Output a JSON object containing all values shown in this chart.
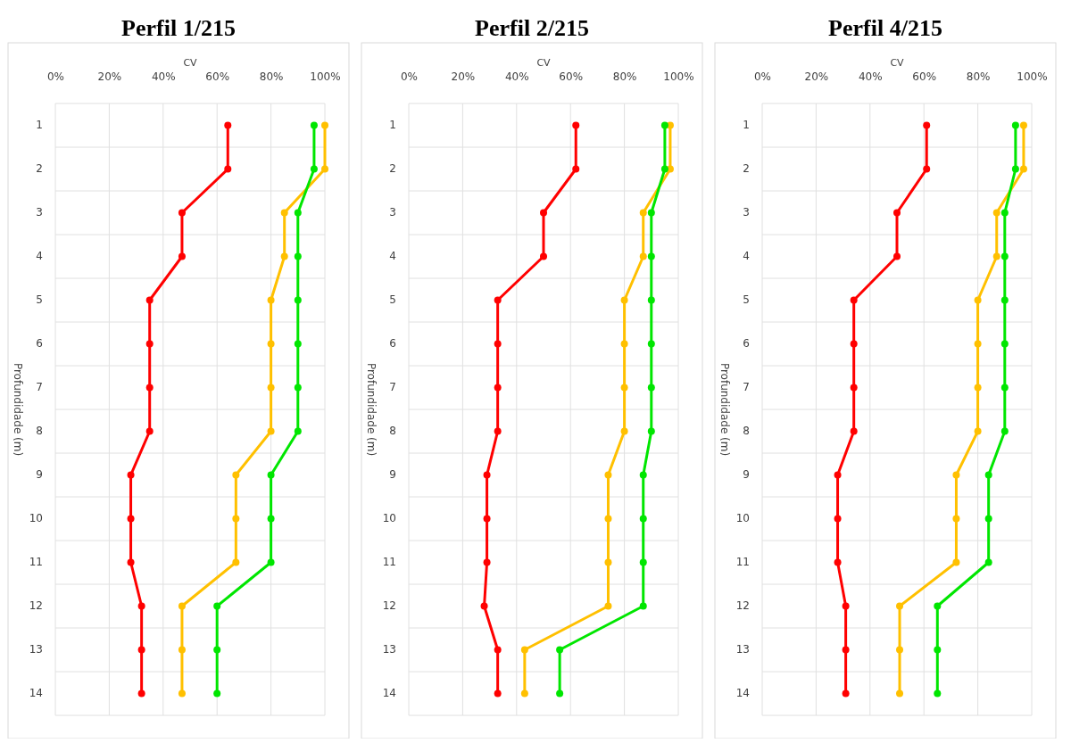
{
  "chart_data": [
    {
      "type": "line",
      "orientation": "horizontal",
      "title": "Perfil 1/215",
      "xlabel": "CV",
      "ylabel": "Profundidade (m)",
      "categories": [
        "1",
        "2",
        "3",
        "4",
        "5",
        "6",
        "7",
        "8",
        "9",
        "10",
        "11",
        "12",
        "13",
        "14"
      ],
      "xlim": [
        0,
        100
      ],
      "xticks": [
        {
          "value": 0,
          "label": "0%"
        },
        {
          "value": 20,
          "label": "20%"
        },
        {
          "value": 40,
          "label": "40%"
        },
        {
          "value": 60,
          "label": "60%"
        },
        {
          "value": 80,
          "label": "80%"
        },
        {
          "value": 100,
          "label": "100%"
        }
      ],
      "grid": true,
      "marker": "circle",
      "series": [
        {
          "color": "#ff0000",
          "values": [
            64,
            64,
            47,
            47,
            35,
            35,
            35,
            35,
            28,
            28,
            28,
            32,
            32,
            32
          ]
        },
        {
          "color": "#ffc000",
          "values": [
            100,
            100,
            85,
            85,
            80,
            80,
            80,
            80,
            67,
            67,
            67,
            47,
            47,
            47
          ]
        },
        {
          "color": "#00e600",
          "values": [
            96,
            96,
            90,
            90,
            90,
            90,
            90,
            90,
            80,
            80,
            80,
            60,
            60,
            60
          ]
        }
      ]
    },
    {
      "type": "line",
      "orientation": "horizontal",
      "title": "Perfil 2/215",
      "xlabel": "CV",
      "ylabel": "Profundidade (m)",
      "categories": [
        "1",
        "2",
        "3",
        "4",
        "5",
        "6",
        "7",
        "8",
        "9",
        "10",
        "11",
        "12",
        "13",
        "14"
      ],
      "xlim": [
        0,
        100
      ],
      "xticks": [
        {
          "value": 0,
          "label": "0%"
        },
        {
          "value": 20,
          "label": "20%"
        },
        {
          "value": 40,
          "label": "40%"
        },
        {
          "value": 60,
          "label": "60%"
        },
        {
          "value": 80,
          "label": "80%"
        },
        {
          "value": 100,
          "label": "100%"
        }
      ],
      "grid": true,
      "marker": "circle",
      "series": [
        {
          "color": "#ff0000",
          "values": [
            62,
            62,
            50,
            50,
            33,
            33,
            33,
            33,
            29,
            29,
            29,
            28,
            33,
            33
          ]
        },
        {
          "color": "#ffc000",
          "values": [
            97,
            97,
            87,
            87,
            80,
            80,
            80,
            80,
            74,
            74,
            74,
            74,
            43,
            43
          ]
        },
        {
          "color": "#00e600",
          "values": [
            95,
            95,
            90,
            90,
            90,
            90,
            90,
            90,
            87,
            87,
            87,
            87,
            56,
            56
          ]
        }
      ]
    },
    {
      "type": "line",
      "orientation": "horizontal",
      "title": "Perfil 4/215",
      "xlabel": "CV",
      "ylabel": "Profundidade (m)",
      "categories": [
        "1",
        "2",
        "3",
        "4",
        "5",
        "6",
        "7",
        "8",
        "9",
        "10",
        "11",
        "12",
        "13",
        "14"
      ],
      "xlim": [
        0,
        100
      ],
      "xticks": [
        {
          "value": 0,
          "label": "0%"
        },
        {
          "value": 20,
          "label": "20%"
        },
        {
          "value": 40,
          "label": "40%"
        },
        {
          "value": 60,
          "label": "60%"
        },
        {
          "value": 80,
          "label": "80%"
        },
        {
          "value": 100,
          "label": "100%"
        }
      ],
      "grid": true,
      "marker": "circle",
      "series": [
        {
          "color": "#ff0000",
          "values": [
            61,
            61,
            50,
            50,
            34,
            34,
            34,
            34,
            28,
            28,
            28,
            31,
            31,
            31
          ]
        },
        {
          "color": "#ffc000",
          "values": [
            97,
            97,
            87,
            87,
            80,
            80,
            80,
            80,
            72,
            72,
            72,
            51,
            51,
            51
          ]
        },
        {
          "color": "#00e600",
          "values": [
            94,
            94,
            90,
            90,
            90,
            90,
            90,
            90,
            84,
            84,
            84,
            65,
            65,
            65
          ]
        }
      ]
    }
  ]
}
